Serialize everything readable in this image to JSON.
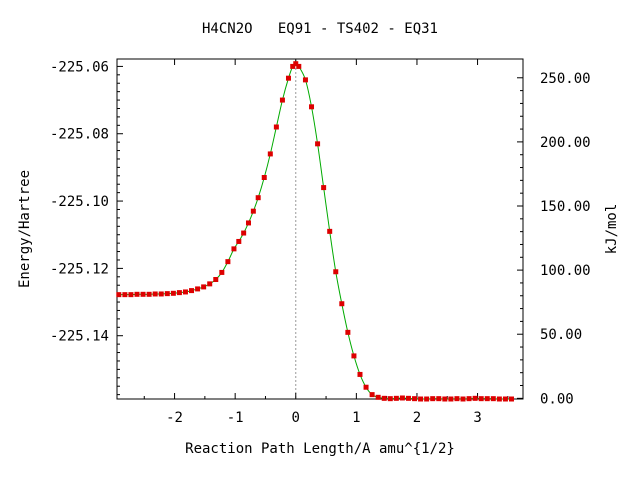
{
  "chart_data": {
    "type": "scatter",
    "title": "H4CN2O   EQ91 - TS402 - EQ31",
    "xlabel": "Reaction Path Length/A amu^{1/2}",
    "ylabel_left": "Energy/Hartree",
    "ylabel_right": "kJ/mol",
    "xlim": [
      -2.95,
      3.75
    ],
    "ylim": [
      -225.1588,
      -225.0578
    ],
    "x_ticks": [
      -2,
      -1,
      0,
      1,
      2,
      3
    ],
    "x_tick_labels": [
      "-2",
      "-1",
      "0",
      "1",
      "2",
      "3"
    ],
    "y_ticks_left": [
      -225.06,
      -225.08,
      -225.1,
      -225.12,
      -225.14
    ],
    "y_tick_labels_left": [
      "-225.06",
      "-225.08",
      "-225.10",
      "-225.12",
      "-225.14"
    ],
    "y_ticks_right_kjmol": [
      250,
      200,
      150,
      100,
      50,
      0
    ],
    "y_tick_labels_right": [
      "250.00",
      "200.00",
      "150.00",
      "100.00",
      "50.00",
      "0.00"
    ],
    "right_axis_zero_hartree": -225.1586,
    "ts_marker_x": 0,
    "grid": false,
    "colors": {
      "curve": "#00aa00",
      "points": "#dd0000",
      "ts_line": "#999999"
    },
    "series": [
      {
        "x": [
          -2.92,
          -2.82,
          -2.72,
          -2.62,
          -2.52,
          -2.42,
          -2.32,
          -2.22,
          -2.12,
          -2.02,
          -1.92,
          -1.82,
          -1.72,
          -1.62,
          -1.52,
          -1.42,
          -1.32,
          -1.22,
          -1.12,
          -1.02,
          -0.94,
          -0.86,
          -0.78,
          -0.7,
          -0.62,
          -0.52,
          -0.42,
          -0.32,
          -0.22,
          -0.12,
          -0.05,
          0.0,
          0.05,
          0.16,
          0.26,
          0.36,
          0.46,
          0.56,
          0.66,
          0.76,
          0.86,
          0.96,
          1.06,
          1.16,
          1.26,
          1.36,
          1.46,
          1.56,
          1.66,
          1.76,
          1.86,
          1.96,
          2.06,
          2.16,
          2.26,
          2.36,
          2.46,
          2.56,
          2.66,
          2.76,
          2.86,
          2.96,
          3.06,
          3.16,
          3.26,
          3.36,
          3.46,
          3.56
        ],
        "y": [
          -225.1278,
          -225.1278,
          -225.1278,
          -225.1277,
          -225.1277,
          -225.1277,
          -225.1276,
          -225.1276,
          -225.1275,
          -225.1274,
          -225.1272,
          -225.127,
          -225.1266,
          -225.1261,
          -225.1255,
          -225.1246,
          -225.1233,
          -225.1212,
          -225.118,
          -225.1142,
          -225.112,
          -225.1095,
          -225.1065,
          -225.103,
          -225.099,
          -225.093,
          -225.086,
          -225.078,
          -225.07,
          -225.0635,
          -225.06,
          -225.0592,
          -225.06,
          -225.064,
          -225.072,
          -225.083,
          -225.096,
          -225.109,
          -225.121,
          -225.1305,
          -225.139,
          -225.146,
          -225.1515,
          -225.1553,
          -225.1575,
          -225.1583,
          -225.1586,
          -225.1587,
          -225.1586,
          -225.1585,
          -225.1586,
          -225.1587,
          -225.1588,
          -225.1588,
          -225.1587,
          -225.1587,
          -225.1588,
          -225.1588,
          -225.1587,
          -225.1588,
          -225.1587,
          -225.1586,
          -225.1587,
          -225.1587,
          -225.1587,
          -225.1588,
          -225.1588,
          -225.1588
        ]
      }
    ]
  }
}
